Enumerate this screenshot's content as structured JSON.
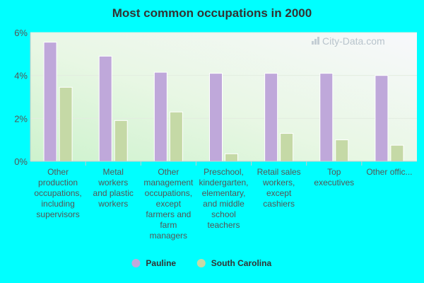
{
  "chart_data": {
    "type": "bar",
    "title": "Most common occupations in 2000",
    "categories": [
      [
        "Other",
        "production",
        "occupations,",
        "including",
        "supervisors"
      ],
      [
        "Metal",
        "workers",
        "and plastic",
        "workers"
      ],
      [
        "Other",
        "management",
        "occupations,",
        "except",
        "farmers and",
        "farm",
        "managers"
      ],
      [
        "Preschool,",
        "kindergarten,",
        "elementary,",
        "and middle",
        "school",
        "teachers"
      ],
      [
        "Retail sales",
        "workers,",
        "except",
        "cashiers"
      ],
      [
        "Top",
        "executives"
      ],
      [
        "Other offic..."
      ]
    ],
    "series": [
      {
        "name": "Pauline",
        "color": "#bfa8da",
        "values": [
          5.55,
          4.9,
          4.15,
          4.1,
          4.1,
          4.1,
          4.0
        ]
      },
      {
        "name": "South Carolina",
        "color": "#c5d9a6",
        "values": [
          3.45,
          1.9,
          2.3,
          0.35,
          1.3,
          1.0,
          0.75
        ]
      }
    ],
    "ylim": [
      0,
      6
    ],
    "yticks": [
      {
        "value": 0,
        "label": "0%"
      },
      {
        "value": 2,
        "label": "2%"
      },
      {
        "value": 4,
        "label": "4%"
      },
      {
        "value": 6,
        "label": "6%"
      }
    ],
    "grid": true,
    "legend_position": "bottom-center",
    "watermark": "City-Data.com"
  }
}
